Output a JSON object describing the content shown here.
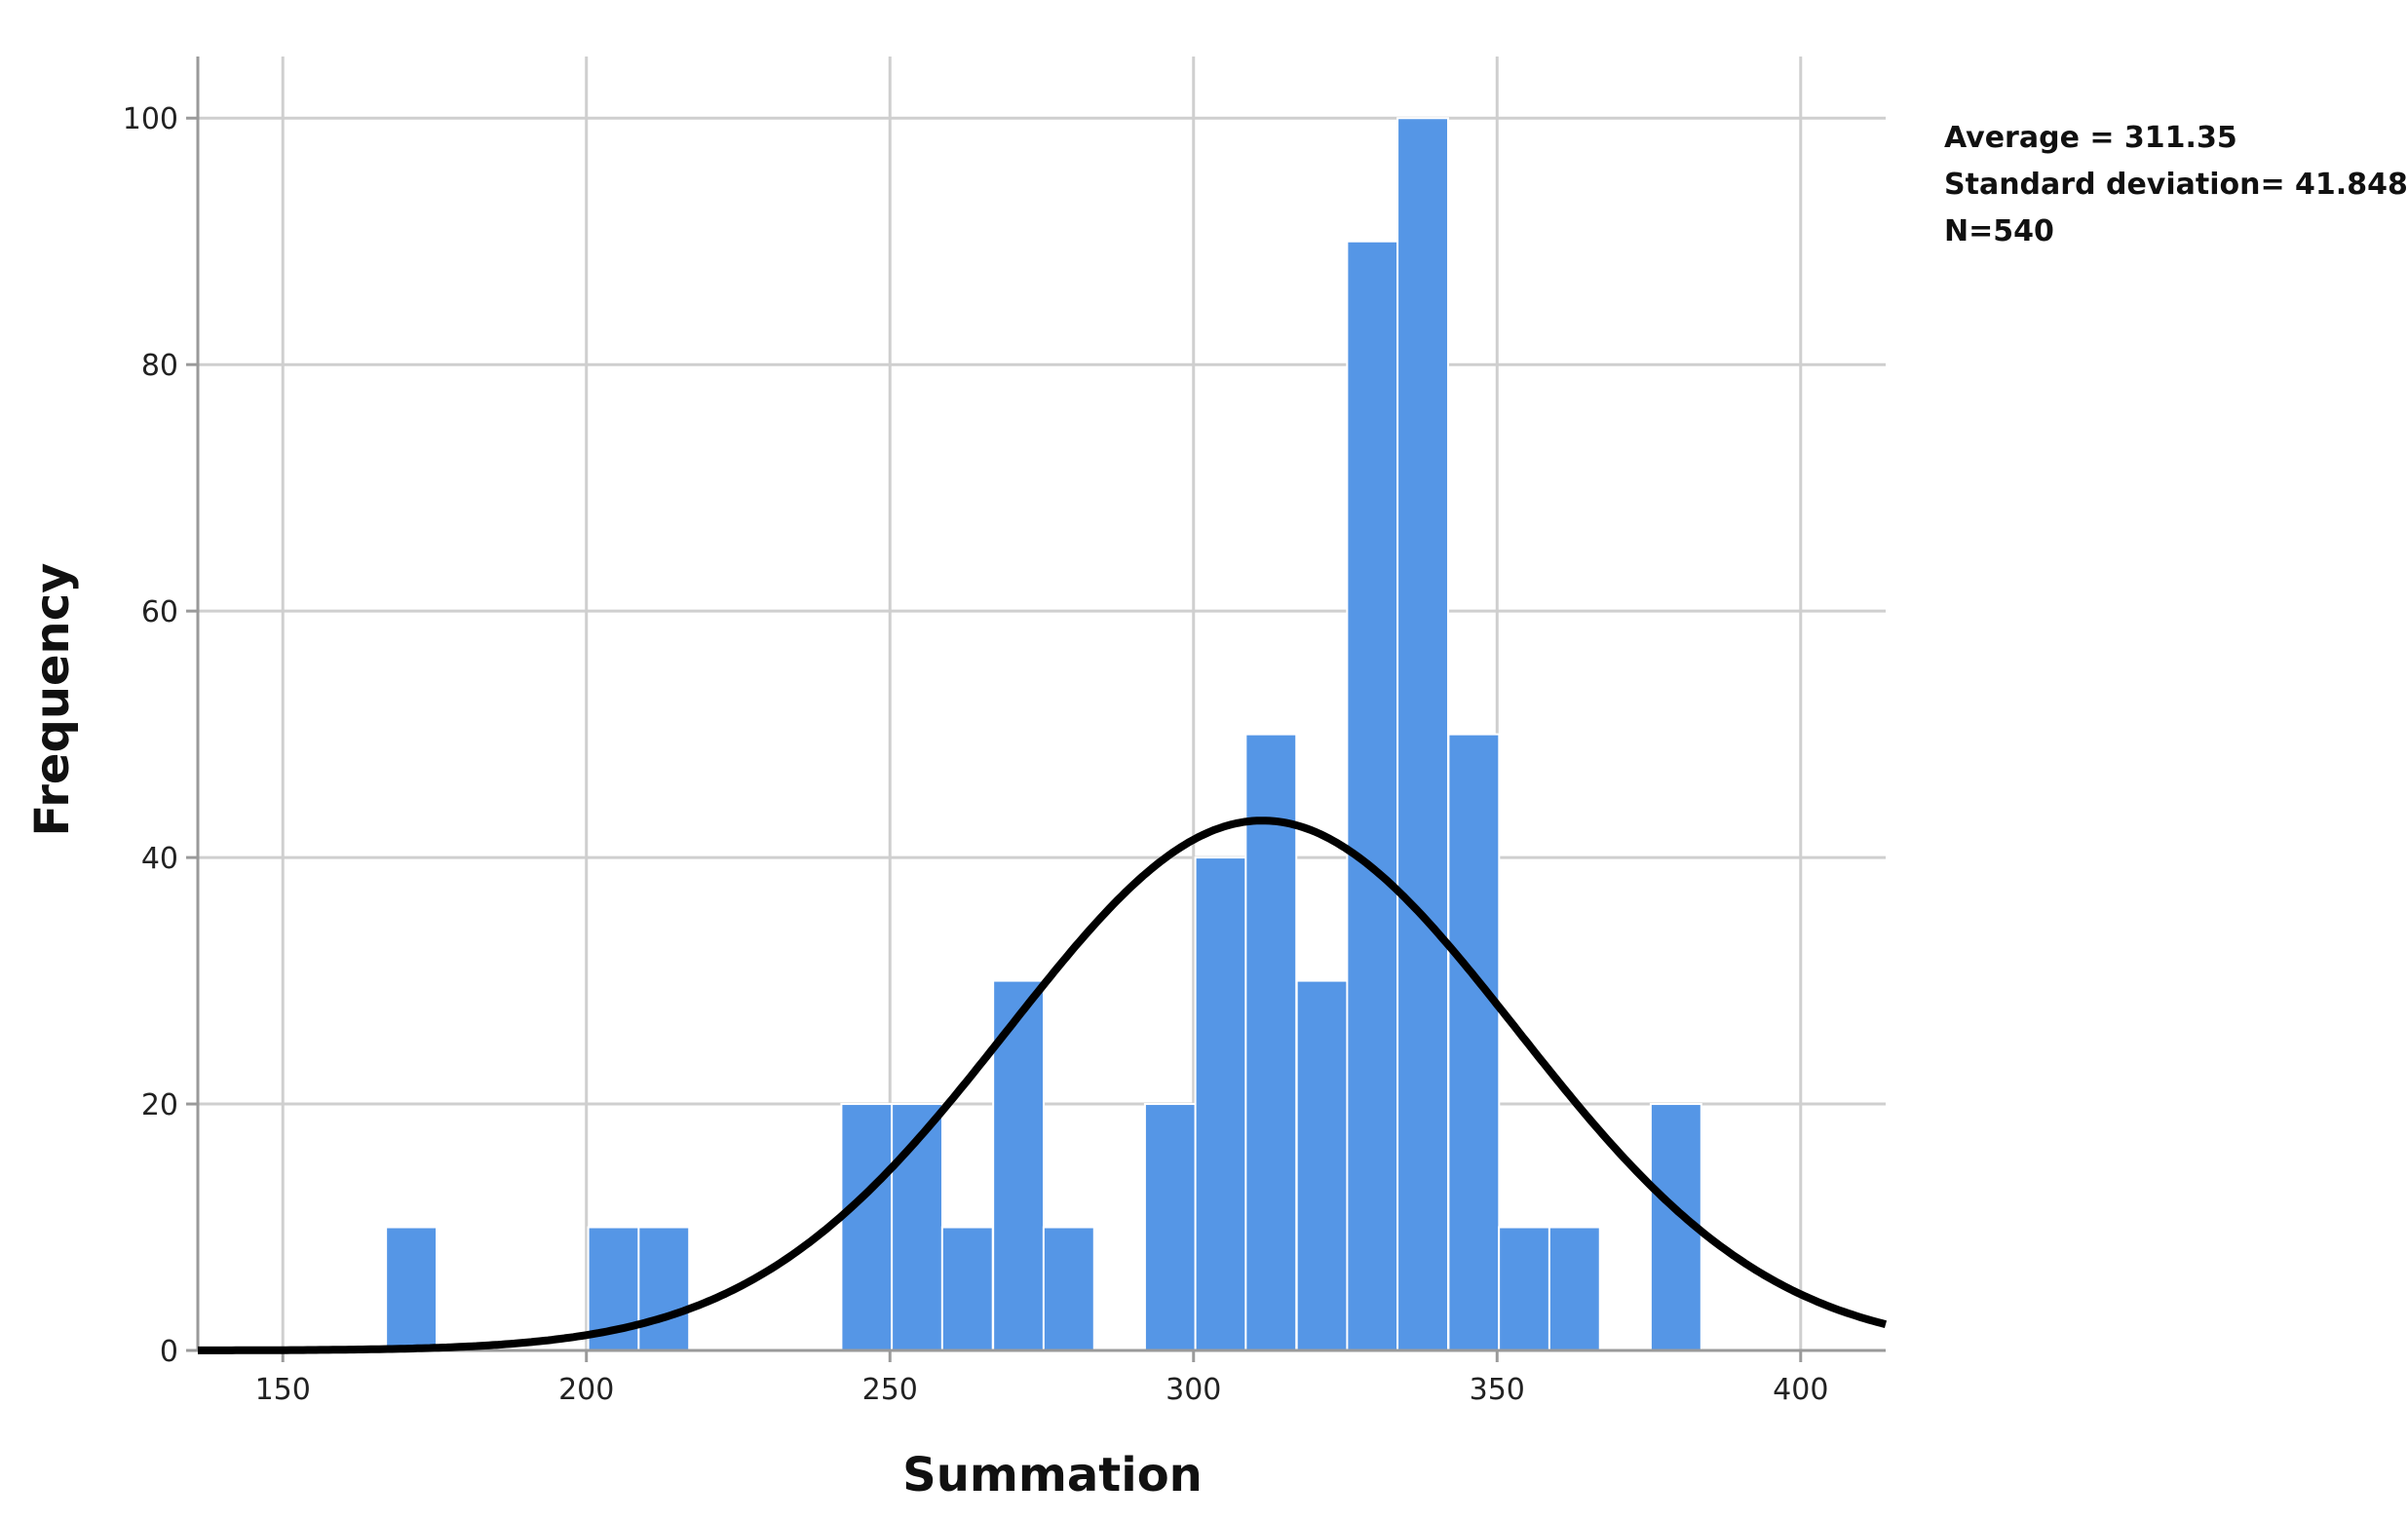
{
  "chart_data": {
    "type": "bar",
    "title": "",
    "xlabel": "Summation",
    "ylabel": "Frequency",
    "xlim": [
      136,
      414
    ],
    "ylim": [
      0,
      105
    ],
    "x_ticks": [
      150,
      200,
      250,
      300,
      350,
      400
    ],
    "y_ticks": [
      0,
      20,
      40,
      60,
      80,
      100
    ],
    "grid": true,
    "bin_width": 8.33,
    "bar_color": "#5596E6",
    "curve_color": "#000000",
    "bins": [
      {
        "start": 167,
        "value": 10
      },
      {
        "start": 200.3,
        "value": 10
      },
      {
        "start": 208.6,
        "value": 10
      },
      {
        "start": 242,
        "value": 20
      },
      {
        "start": 250.3,
        "value": 20
      },
      {
        "start": 258.6,
        "value": 10
      },
      {
        "start": 267,
        "value": 30
      },
      {
        "start": 275.3,
        "value": 10
      },
      {
        "start": 292,
        "value": 20
      },
      {
        "start": 300.3,
        "value": 40
      },
      {
        "start": 308.6,
        "value": 50
      },
      {
        "start": 317,
        "value": 30
      },
      {
        "start": 325.3,
        "value": 90
      },
      {
        "start": 333.6,
        "value": 100
      },
      {
        "start": 342,
        "value": 50
      },
      {
        "start": 350.3,
        "value": 10
      },
      {
        "start": 358.6,
        "value": 10
      },
      {
        "start": 375.3,
        "value": 20
      }
    ],
    "normal_curve": {
      "mean": 311.35,
      "sd": 41.848,
      "peak": 43
    }
  },
  "stats": {
    "average": "Average = 311.35",
    "sd": "Standard deviation= 41.848",
    "n": "N=540"
  }
}
